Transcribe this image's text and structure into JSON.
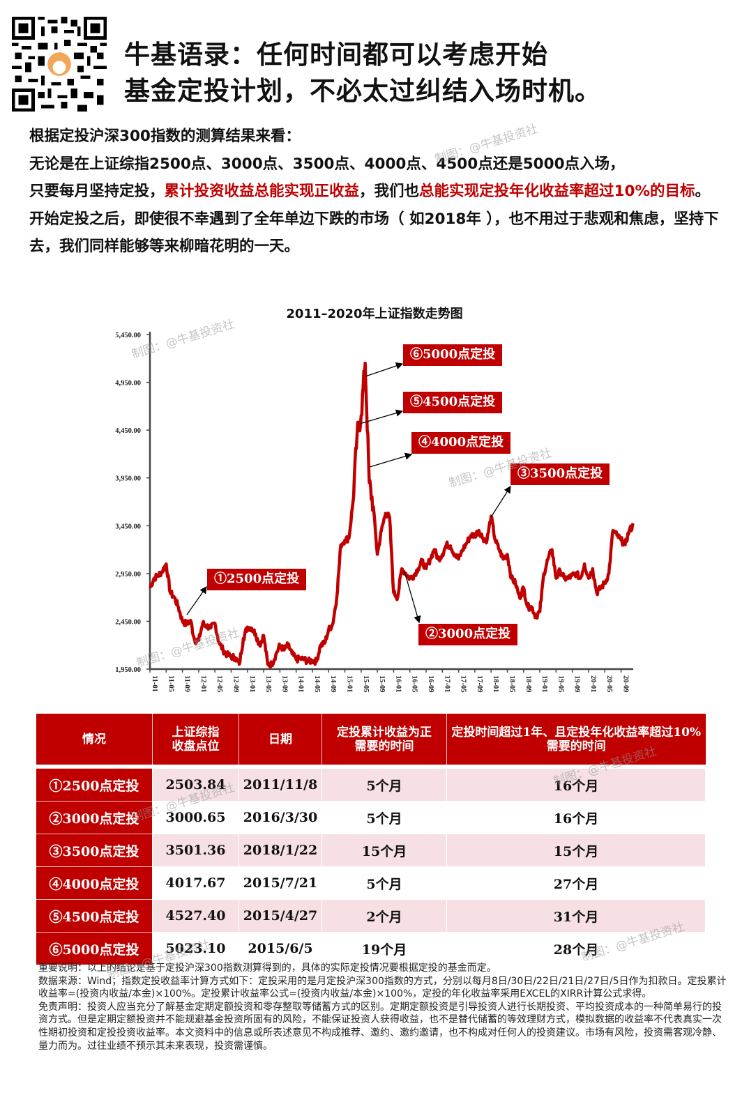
{
  "header": {
    "line1": "牛基语录：任何时间都可以考虑开始",
    "line2": "基金定投计划，不必太过纠结入场时机。",
    "qr_icon": "qr-code-with-bull-mascot"
  },
  "intro": {
    "p1": "根据定投沪深300指数的测算结果来看：",
    "p2": "无论是在上证综指2500点、3000点、3500点、4000点、4500点还是5000点入场，",
    "p3_a": "只要每月坚持定投，",
    "p3_b_red": "累计投资收益总能实现正收益",
    "p3_c": "，我们也",
    "p3_d_red": "总能实现定投年化收益率超过10%的目标",
    "p3_e": "。",
    "p4": "开始定投之后，即使很不幸遇到了全年单边下跌的市场（ 如2018年 ），也不用过于悲观和焦虑，坚持下去，我们同样能够等来柳暗花明的一天。"
  },
  "watermark": "制图：@牛基投资社",
  "colors": {
    "accent": "#c00000",
    "row_shade": "#f6e0e3",
    "axis": "#444444"
  },
  "chart_data": {
    "type": "line",
    "title": "2011–2020年上证指数走势图",
    "xlabel": "",
    "ylabel": "",
    "ylim": [
      1950,
      5450
    ],
    "yticks": [
      "1,950.00",
      "2,450.00",
      "2,950.00",
      "3,450.00",
      "3,950.00",
      "4,450.00",
      "4,950.00",
      "5,450.00"
    ],
    "xticks": [
      "11-01",
      "11-05",
      "11-09",
      "12-01",
      "12-05",
      "12-09",
      "13-01",
      "13-05",
      "13-09",
      "14-01",
      "14-05",
      "14-09",
      "15-01",
      "15-05",
      "15-09",
      "16-01",
      "16-05",
      "16-09",
      "17-01",
      "17-05",
      "17-09",
      "18-01",
      "18-05",
      "18-09",
      "19-01",
      "19-05",
      "19-09",
      "20-01",
      "20-05",
      "20-09"
    ],
    "grid": false,
    "legend": "none",
    "series": [
      {
        "name": "上证指数",
        "color": "#c00000",
        "x": [
          "11-01",
          "11-02",
          "11-03",
          "11-04",
          "11-05",
          "11-06",
          "11-07",
          "11-08",
          "11-09",
          "11-10",
          "11-11",
          "11-12",
          "12-01",
          "12-02",
          "12-03",
          "12-04",
          "12-05",
          "12-06",
          "12-07",
          "12-08",
          "12-09",
          "12-10",
          "12-11",
          "12-12",
          "13-01",
          "13-02",
          "13-03",
          "13-04",
          "13-05",
          "13-06",
          "13-07",
          "13-08",
          "13-09",
          "13-10",
          "13-11",
          "13-12",
          "14-01",
          "14-02",
          "14-03",
          "14-04",
          "14-05",
          "14-06",
          "14-07",
          "14-08",
          "14-09",
          "14-10",
          "14-11",
          "14-12",
          "15-01",
          "15-02",
          "15-03",
          "15-04",
          "15-05",
          "15-06",
          "15-07",
          "15-08",
          "15-09",
          "15-10",
          "15-11",
          "15-12",
          "16-01",
          "16-02",
          "16-03",
          "16-04",
          "16-05",
          "16-06",
          "16-07",
          "16-08",
          "16-09",
          "16-10",
          "16-11",
          "16-12",
          "17-01",
          "17-02",
          "17-03",
          "17-04",
          "17-05",
          "17-06",
          "17-07",
          "17-08",
          "17-09",
          "17-10",
          "17-11",
          "17-12",
          "18-01",
          "18-02",
          "18-03",
          "18-04",
          "18-05",
          "18-06",
          "18-07",
          "18-08",
          "18-09",
          "18-10",
          "18-11",
          "18-12",
          "19-01",
          "19-02",
          "19-03",
          "19-04",
          "19-05",
          "19-06",
          "19-07",
          "19-08",
          "19-09",
          "19-10",
          "19-11",
          "19-12",
          "20-01",
          "20-02",
          "20-03",
          "20-04",
          "20-05",
          "20-06",
          "20-07",
          "20-08",
          "20-09",
          "20-10",
          "20-11",
          "20-12"
        ],
        "values": [
          2800,
          2900,
          2930,
          2970,
          3050,
          2750,
          2700,
          2600,
          2450,
          2420,
          2460,
          2250,
          2250,
          2430,
          2400,
          2380,
          2430,
          2230,
          2150,
          2100,
          2080,
          2070,
          2000,
          2270,
          2390,
          2380,
          2320,
          2200,
          2300,
          2000,
          2000,
          2100,
          2200,
          2150,
          2200,
          2110,
          2050,
          2060,
          2050,
          2030,
          2040,
          2030,
          2200,
          2220,
          2360,
          2420,
          2700,
          3250,
          3300,
          3320,
          3700,
          4400,
          4600,
          5150,
          3900,
          3650,
          3150,
          3400,
          3580,
          3540,
          2750,
          2700,
          3000,
          2950,
          2900,
          2930,
          3000,
          3080,
          3000,
          3100,
          3200,
          3100,
          3150,
          3250,
          3240,
          3150,
          3100,
          3200,
          3270,
          3350,
          3350,
          3400,
          3320,
          3300,
          3550,
          3300,
          3200,
          3100,
          3150,
          2900,
          2850,
          2700,
          2800,
          2600,
          2600,
          2500,
          2550,
          2950,
          3100,
          3200,
          2900,
          2980,
          2900,
          2900,
          2930,
          2950,
          2900,
          3050,
          2900,
          3000,
          2750,
          2800,
          2850,
          2950,
          3400,
          3350,
          3300,
          3250,
          3400,
          3450
        ]
      }
    ],
    "annotations": [
      {
        "label": "①2500点定投",
        "point": {
          "x": "11-11",
          "y": 2503.84
        }
      },
      {
        "label": "②3000点定投",
        "point": {
          "x": "16-03",
          "y": 3000.65
        }
      },
      {
        "label": "③3500点定投",
        "point": {
          "x": "18-01",
          "y": 3501.36
        }
      },
      {
        "label": "④4000点定投",
        "point": {
          "x": "15-07",
          "y": 4017.67
        }
      },
      {
        "label": "⑤4500点定投",
        "point": {
          "x": "15-04",
          "y": 4527.4
        }
      },
      {
        "label": "⑥5000点定投",
        "point": {
          "x": "15-06",
          "y": 5023.1
        }
      }
    ]
  },
  "table": {
    "headers": [
      "情况",
      "上证综指\n收盘点位",
      "日期",
      "定投累计收益为正\n需要的时间",
      "定投时间超过1年、且定投年化收益率超过10%\n需要的时间"
    ],
    "header_lines": [
      [
        "情况"
      ],
      [
        "上证综指",
        "收盘点位"
      ],
      [
        "日期"
      ],
      [
        "定投累计收益为正",
        "需要的时间"
      ],
      [
        "定投时间超过1年、且定投年化收益率超过10%",
        "需要的时间"
      ]
    ],
    "rows": [
      {
        "label": "①2500点定投",
        "close": "2503.84",
        "date": "2011/11/8",
        "positive": "5个月",
        "over10": "16个月"
      },
      {
        "label": "②3000点定投",
        "close": "3000.65",
        "date": "2016/3/30",
        "positive": "5个月",
        "over10": "16个月"
      },
      {
        "label": "③3500点定投",
        "close": "3501.36",
        "date": "2018/1/22",
        "positive": "15个月",
        "over10": "15个月"
      },
      {
        "label": "④4000点定投",
        "close": "4017.67",
        "date": "2015/7/21",
        "positive": "5个月",
        "over10": "27个月"
      },
      {
        "label": "⑤4500点定投",
        "close": "4527.40",
        "date": "2015/4/27",
        "positive": "2个月",
        "over10": "31个月"
      },
      {
        "label": "⑥5000点定投",
        "close": "5023.10",
        "date": "2015/6/5",
        "positive": "19个月",
        "over10": "28个月"
      }
    ]
  },
  "notes": {
    "important": "重要说明：以上的结论是基于定投沪深300指数测算得到的，具体的实际定投情况要根据定投的基金而定。",
    "source": "数据来源：Wind；指数定投收益率计算方式如下：定投采用的是月定投沪深300指数的方式，分别以每月8日/30日/22日/21日/27日/5日作为扣款日。定投累计收益率=(投资内收益/本金)×100%。定投累计收益率公式=(投资内收益/本金)×100%，定投的年化收益率采用EXCEL的XIRR计算公式求得。",
    "disclaimer": "免责声明：投资人应当充分了解基金定期定额投资和零存整取等储蓄方式的区别。定期定额投资是引导投资人进行长期投资、平均投资成本的一种简单易行的投资方式。但是定期定额投资并不能规避基金投资所固有的风险，不能保证投资人获得收益，也不是替代储蓄的等效理财方式，模拟数据的收益率不代表真实一次性期初投资和定投投资收益率。本文资料中的信息或所表述意见不构成推荐、邀约、邀约邀请，也不构成对任何人的投资建议。市场有风险，投资需客观冷静、量力而为。过往业绩不预示其未来表现，投资需谨慎。"
  }
}
